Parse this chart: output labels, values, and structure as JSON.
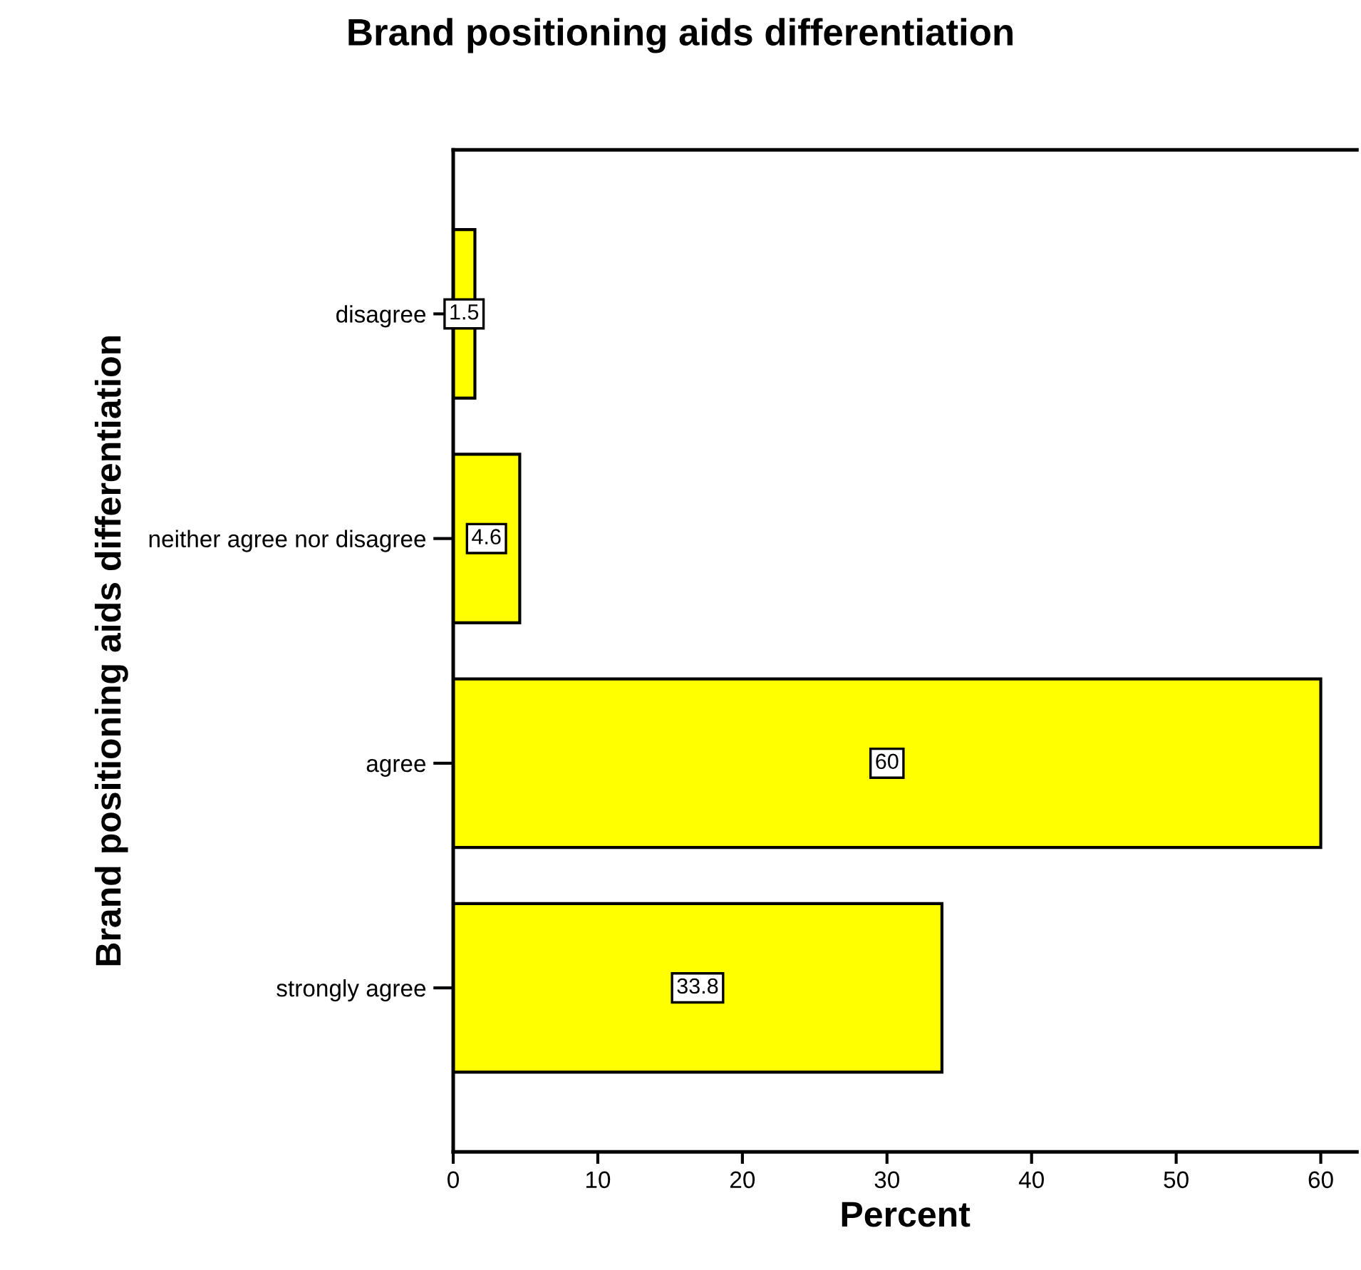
{
  "chart_data": {
    "type": "bar",
    "orientation": "horizontal",
    "title": "Brand positioning aids differentiation",
    "xlabel": "Percent",
    "ylabel": "Brand positioning aids differentiation",
    "categories": [
      "disagree",
      "neither agree nor disagree",
      "agree",
      "strongly agree"
    ],
    "values": [
      1.5,
      4.6,
      60,
      33.8
    ],
    "color": "#ffff00",
    "xlim": [
      0,
      62.5
    ],
    "xticks": [
      0,
      10,
      20,
      30,
      40,
      50,
      60
    ],
    "data_labels": true,
    "grid": false,
    "legend": false
  }
}
